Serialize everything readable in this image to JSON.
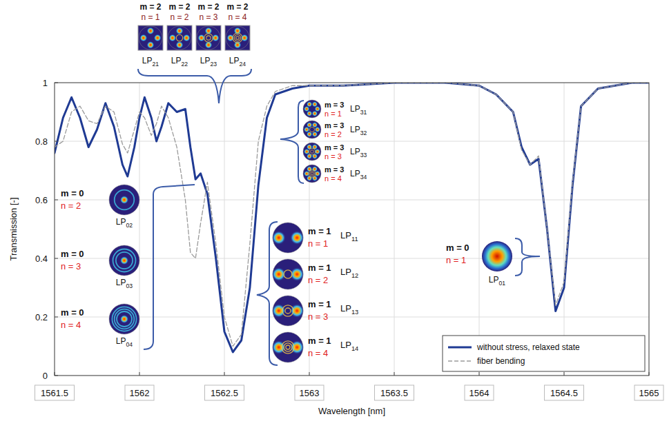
{
  "chart_data": {
    "type": "line",
    "x_label": "Wavelength [nm]",
    "y_label": "Transmission [-]",
    "xlim": [
      1561.5,
      1565
    ],
    "ylim": [
      0,
      1
    ],
    "xticks": [
      1561.5,
      1562,
      1562.5,
      1563,
      1563.5,
      1564,
      1564.5,
      1565
    ],
    "yticks": [
      0,
      0.2,
      0.4,
      0.6,
      0.8,
      1
    ],
    "grid": true,
    "legend": "bottom right",
    "x": [
      1561.5,
      1561.55,
      1561.6,
      1561.65,
      1561.7,
      1561.75,
      1561.8,
      1561.85,
      1561.9,
      1561.93,
      1561.97,
      1562.0,
      1562.03,
      1562.07,
      1562.1,
      1562.13,
      1562.17,
      1562.22,
      1562.27,
      1562.3,
      1562.33,
      1562.36,
      1562.4,
      1562.45,
      1562.5,
      1562.55,
      1562.6,
      1562.65,
      1562.7,
      1562.75,
      1562.8,
      1562.9,
      1563.0,
      1563.2,
      1563.5,
      1563.8,
      1564.0,
      1564.1,
      1564.2,
      1564.25,
      1564.3,
      1564.35,
      1564.4,
      1564.45,
      1564.5,
      1564.55,
      1564.6,
      1564.7,
      1564.9,
      1565.0
    ],
    "series": [
      {
        "name": "without stress, relaxed state",
        "color": "#1f3a93",
        "line_style": "solid",
        "values": [
          0.76,
          0.88,
          0.95,
          0.88,
          0.78,
          0.84,
          0.93,
          0.85,
          0.72,
          0.68,
          0.78,
          0.88,
          0.95,
          0.88,
          0.8,
          0.85,
          0.93,
          0.9,
          0.91,
          0.78,
          0.67,
          0.69,
          0.62,
          0.4,
          0.15,
          0.08,
          0.12,
          0.3,
          0.65,
          0.88,
          0.96,
          0.98,
          0.99,
          0.99,
          1.0,
          1.0,
          0.99,
          0.96,
          0.9,
          0.78,
          0.72,
          0.74,
          0.5,
          0.22,
          0.3,
          0.65,
          0.92,
          0.98,
          1.0,
          1.0
        ]
      },
      {
        "name": "fiber bending",
        "color": "#9a9a9a",
        "line_style": "dashed",
        "values": [
          0.78,
          0.8,
          0.9,
          0.92,
          0.87,
          0.86,
          0.92,
          0.9,
          0.79,
          0.76,
          0.84,
          0.9,
          0.88,
          0.82,
          0.86,
          0.92,
          0.88,
          0.78,
          0.6,
          0.42,
          0.4,
          0.52,
          0.66,
          0.45,
          0.2,
          0.1,
          0.14,
          0.45,
          0.8,
          0.92,
          0.97,
          0.99,
          0.99,
          0.99,
          1.0,
          1.0,
          0.99,
          0.96,
          0.9,
          0.77,
          0.72,
          0.75,
          0.5,
          0.24,
          0.32,
          0.66,
          0.92,
          0.98,
          1.0,
          1.0
        ]
      }
    ],
    "annotations": [
      {
        "modes": [
          {
            "m": "m = 2",
            "n": "n = 1",
            "label": "LP21"
          },
          {
            "m": "m = 2",
            "n": "n = 2",
            "label": "LP22"
          },
          {
            "m": "m = 2",
            "n": "n = 3",
            "label": "LP23"
          },
          {
            "m": "m = 2",
            "n": "n = 4",
            "label": "LP24"
          }
        ]
      },
      {
        "modes": [
          {
            "m": "m = 3",
            "n": "n = 1",
            "label": "LP31"
          },
          {
            "m": "m = 3",
            "n": "n = 2",
            "label": "LP32"
          },
          {
            "m": "m = 3",
            "n": "n = 3",
            "label": "LP33"
          },
          {
            "m": "m = 3",
            "n": "n = 4",
            "label": "LP34"
          }
        ]
      },
      {
        "modes": [
          {
            "m": "m = 0",
            "n": "n = 2",
            "label": "LP02"
          },
          {
            "m": "m = 0",
            "n": "n = 3",
            "label": "LP03"
          },
          {
            "m": "m = 0",
            "n": "n = 4",
            "label": "LP04"
          }
        ]
      },
      {
        "modes": [
          {
            "m": "m = 1",
            "n": "n = 1",
            "label": "LP11"
          },
          {
            "m": "m = 1",
            "n": "n = 2",
            "label": "LP12"
          },
          {
            "m": "m = 1",
            "n": "n = 3",
            "label": "LP13"
          },
          {
            "m": "m = 1",
            "n": "n = 4",
            "label": "LP14"
          }
        ]
      },
      {
        "modes": [
          {
            "m": "m = 0",
            "n": "n = 1",
            "label": "LP01"
          }
        ]
      }
    ]
  }
}
